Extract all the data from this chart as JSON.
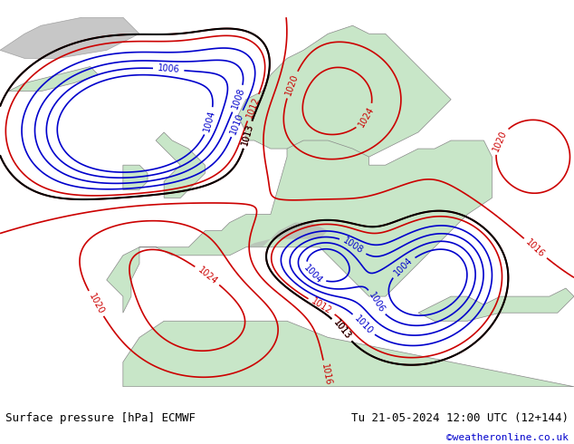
{
  "title_left": "Surface pressure [hPa] ECMWF",
  "title_right": "Tu 21-05-2024 12:00 UTC (12+144)",
  "copyright": "©weatheronline.co.uk",
  "bg_color": "#e8f4e8",
  "land_color": "#c8e6c8",
  "sea_color": "#d0e8f0",
  "mountain_color": "#b0b0b0",
  "bottom_bar_color": "#ffffff",
  "label_font_size": 9,
  "copyright_color": "#0000cc",
  "title_color": "#000000",
  "isobar_red_color": "#cc0000",
  "isobar_blue_color": "#0000cc",
  "isobar_black_color": "#000000",
  "isobar_linewidth": 1.2
}
